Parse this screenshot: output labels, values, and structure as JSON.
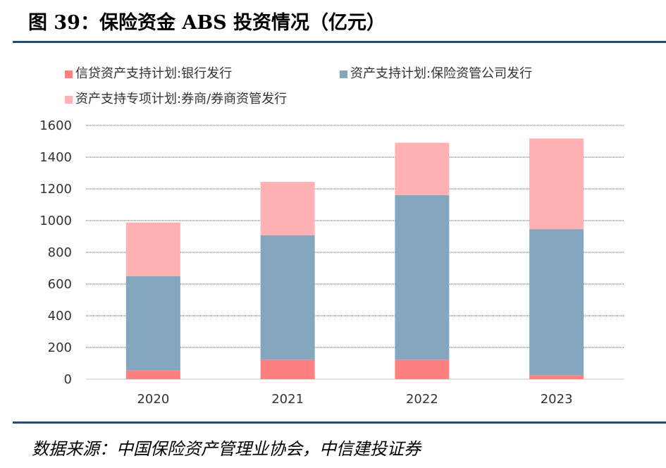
{
  "title": "图 39：保险资金 ABS 投资情况（亿元）",
  "source": "数据来源：中国保险资产管理业协会，中信建投证券",
  "chart_data": {
    "type": "bar",
    "stacked": true,
    "categories": [
      "2020",
      "2021",
      "2022",
      "2023"
    ],
    "series": [
      {
        "name": "信贷资产支持计划:银行发行",
        "color": "#FF8080",
        "values": [
          56,
          123,
          123,
          25
        ]
      },
      {
        "name": "资产支持计划:保险资管公司发行",
        "color": "#84A6BE",
        "values": [
          593,
          785,
          1038,
          921
        ]
      },
      {
        "name": "资产支持专项计划:券商/券商资管发行",
        "color": "#FFB1B3",
        "values": [
          339,
          336,
          330,
          572
        ]
      }
    ],
    "yticks": [
      "0",
      "200",
      "400",
      "600",
      "800",
      "1000",
      "1200",
      "1400",
      "1600"
    ],
    "ylim": [
      0,
      1600
    ],
    "grid": true,
    "legend": "top"
  }
}
